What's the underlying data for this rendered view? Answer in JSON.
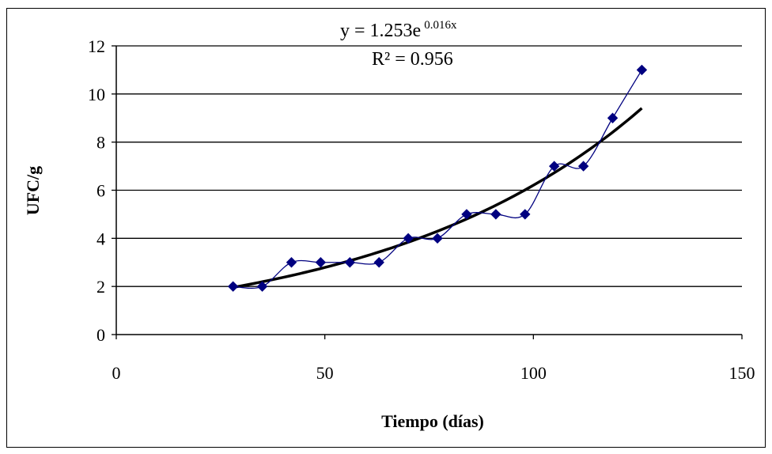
{
  "chart_data": {
    "type": "scatter",
    "title": "",
    "xlabel": "Tiempo (días)",
    "ylabel": "UFC/g",
    "xlim": [
      0,
      150
    ],
    "ylim": [
      0,
      12
    ],
    "xticks": [
      0,
      50,
      100,
      150
    ],
    "yticks": [
      0,
      2,
      4,
      6,
      8,
      10,
      12
    ],
    "grid": "horizontal",
    "series": [
      {
        "x": [
          28,
          35,
          42,
          49,
          56,
          63,
          70,
          77,
          84,
          91,
          98,
          105,
          112,
          119,
          126
        ],
        "y": [
          2,
          2,
          3,
          3,
          3,
          3,
          4,
          4,
          5,
          5,
          5,
          7,
          7,
          9,
          11
        ],
        "marker": "diamond",
        "line": "smooth",
        "color": "#000080"
      }
    ],
    "trendline": {
      "type": "exponential",
      "a": 1.253,
      "b": 0.016,
      "x_range": [
        28,
        126
      ],
      "color": "#000000",
      "equation_base": "y = 1.253e",
      "equation_exponent": "0.016x",
      "r2_label": "R² = 0.956"
    }
  }
}
